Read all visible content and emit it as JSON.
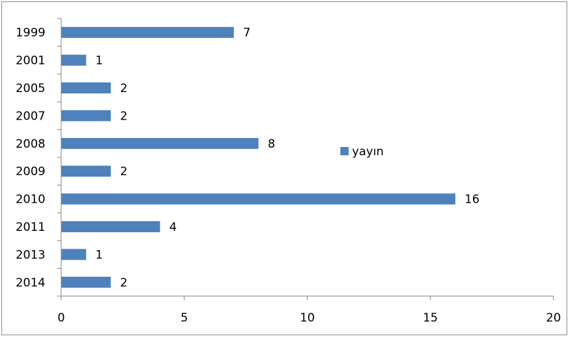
{
  "chart_data": {
    "type": "bar",
    "orientation": "horizontal",
    "categories": [
      "1999",
      "2001",
      "2005",
      "2007",
      "2008",
      "2009",
      "2010",
      "2011",
      "2013",
      "2014"
    ],
    "series": [
      {
        "name": "yayın",
        "values": [
          7,
          1,
          2,
          2,
          8,
          2,
          16,
          4,
          1,
          2
        ],
        "color": "#4f81bd"
      }
    ],
    "xlim": [
      0,
      20
    ],
    "x_ticks": [
      0,
      5,
      10,
      15,
      20
    ],
    "grid": false,
    "legend_position": "right",
    "data_labels": true
  }
}
